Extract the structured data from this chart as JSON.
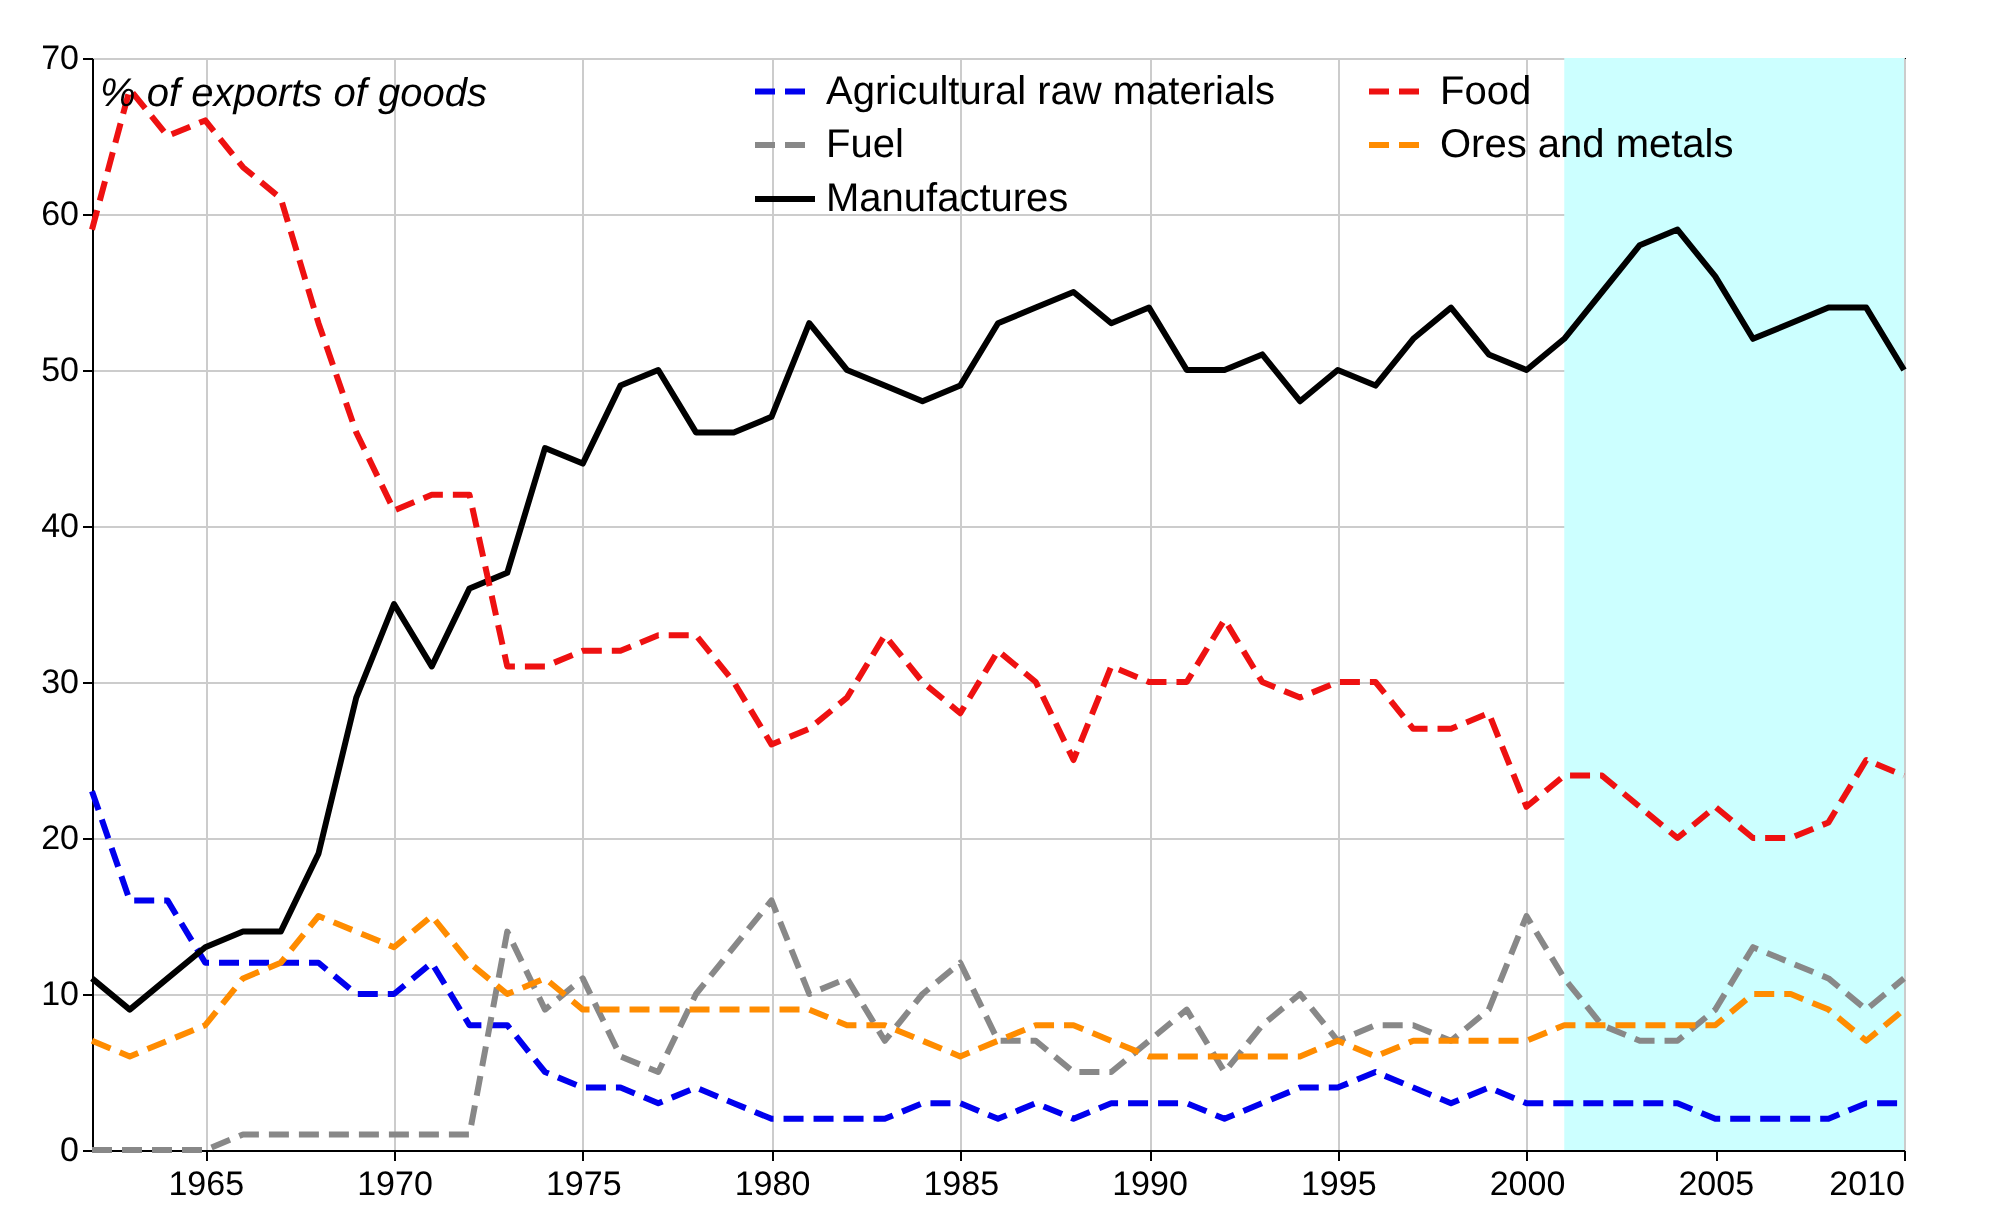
{
  "chart_data": {
    "type": "line",
    "ylabel": "% of exports of goods",
    "x": [
      1962,
      1963,
      1964,
      1965,
      1966,
      1967,
      1968,
      1969,
      1970,
      1971,
      1972,
      1973,
      1974,
      1975,
      1976,
      1977,
      1978,
      1979,
      1980,
      1981,
      1982,
      1983,
      1984,
      1985,
      1986,
      1987,
      1988,
      1989,
      1990,
      1991,
      1992,
      1993,
      1994,
      1995,
      1996,
      1997,
      1998,
      1999,
      2000,
      2001,
      2002,
      2003,
      2004,
      2005,
      2006,
      2007,
      2008,
      2009,
      2010
    ],
    "series": [
      {
        "name": "Agricultural raw materials",
        "color": "#0000ee",
        "line_style": "dashed",
        "values": [
          23,
          16,
          16,
          12,
          12,
          12,
          12,
          10,
          10,
          12,
          8,
          8,
          5,
          4,
          4,
          3,
          4,
          3,
          2,
          2,
          2,
          2,
          3,
          3,
          2,
          3,
          2,
          3,
          3,
          3,
          2,
          3,
          4,
          4,
          5,
          4,
          3,
          4,
          3,
          3,
          3,
          3,
          3,
          2,
          2,
          2,
          2,
          3,
          3
        ]
      },
      {
        "name": "Fuel",
        "color": "#888888",
        "line_style": "dashed",
        "values": [
          0,
          0,
          0,
          0,
          1,
          1,
          1,
          1,
          1,
          1,
          1,
          14,
          9,
          11,
          6,
          5,
          10,
          13,
          16,
          10,
          11,
          7,
          10,
          12,
          7,
          7,
          5,
          5,
          7,
          9,
          5,
          8,
          10,
          7,
          8,
          8,
          7,
          9,
          15,
          11,
          8,
          7,
          7,
          9,
          13,
          12,
          11,
          9,
          11
        ]
      },
      {
        "name": "Manufactures",
        "color": "#000000",
        "line_style": "solid",
        "values": [
          11,
          9,
          11,
          13,
          14,
          14,
          19,
          29,
          35,
          31,
          36,
          37,
          45,
          44,
          49,
          50,
          46,
          46,
          47,
          53,
          50,
          49,
          48,
          49,
          53,
          54,
          55,
          53,
          54,
          50,
          50,
          51,
          48,
          50,
          49,
          52,
          54,
          51,
          50,
          52,
          55,
          58,
          59,
          56,
          52,
          53,
          54,
          54,
          50
        ]
      },
      {
        "name": "Food",
        "color": "#ee1111",
        "line_style": "dashed",
        "values": [
          59,
          68,
          65,
          66,
          63,
          61,
          53,
          46,
          41,
          42,
          42,
          31,
          31,
          32,
          32,
          33,
          33,
          30,
          26,
          27,
          29,
          33,
          30,
          28,
          32,
          30,
          25,
          31,
          30,
          30,
          34,
          30,
          29,
          30,
          30,
          27,
          27,
          28,
          22,
          24,
          24,
          22,
          20,
          22,
          20,
          20,
          21,
          25,
          24
        ]
      },
      {
        "name": "Ores and metals",
        "color": "#ff8c00",
        "line_style": "dashed",
        "values": [
          7,
          6,
          7,
          8,
          11,
          12,
          15,
          14,
          13,
          15,
          12,
          10,
          11,
          9,
          9,
          9,
          9,
          9,
          9,
          9,
          8,
          8,
          7,
          6,
          7,
          8,
          8,
          7,
          6,
          6,
          6,
          6,
          6,
          7,
          6,
          7,
          7,
          7,
          7,
          8,
          8,
          8,
          8,
          8,
          10,
          10,
          9,
          7,
          9
        ]
      }
    ],
    "xlim": [
      1962,
      2010
    ],
    "xticks": [
      1965,
      1970,
      1975,
      1980,
      1985,
      1990,
      1995,
      2000,
      2005,
      2010
    ],
    "ylim": [
      0,
      70
    ],
    "yticks": [
      0,
      10,
      20,
      30,
      40,
      50,
      60,
      70
    ],
    "bands": [
      {
        "axis": "x",
        "from": 2001,
        "to": 2010,
        "color": "#ccffff"
      }
    ],
    "grid": true,
    "legend": "top"
  }
}
